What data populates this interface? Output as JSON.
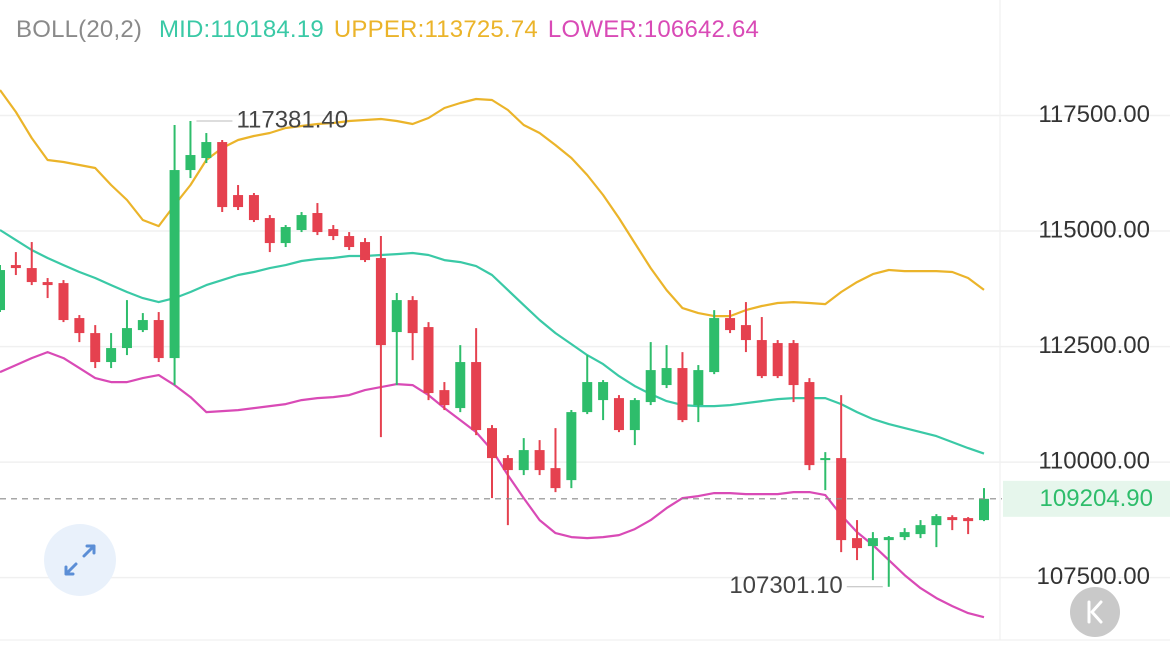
{
  "chart_data": {
    "type": "candlestick",
    "indicator": "BOLL(20,2)",
    "up_color": "#2ebd6b",
    "down_color": "#e5414f",
    "open": [
      113290,
      114264,
      114199,
      113896,
      113874,
      113117,
      112792,
      112165,
      112468,
      112857,
      113074,
      112251,
      116320,
      116580,
      116926,
      115779,
      115779,
      115281,
      114740,
      115022,
      115390,
      115043,
      114892,
      114762,
      114416,
      112814,
      113506,
      112922,
      111558,
      111169,
      112165,
      110736,
      110087,
      109827,
      110260,
      109870,
      109610,
      111082,
      111342,
      111385,
      110693,
      111299,
      111667,
      112035,
      111234,
      111948,
      113117,
      112965,
      112641,
      112576,
      112576,
      111732,
      110043,
      110087,
      108355,
      108182,
      108312,
      108377,
      108442,
      108636,
      108810,
      108788,
      108745
    ],
    "high": [
      114264,
      114545,
      114762,
      113983,
      113939,
      113182,
      112965,
      112792,
      113506,
      113225,
      113247,
      117294,
      117381.4,
      117121,
      116970,
      115996,
      115823,
      115346,
      115130,
      115411,
      115606,
      115130,
      114978,
      114848,
      114892,
      113658,
      113593,
      113030,
      111732,
      112532,
      112900,
      110801,
      110152,
      110519,
      110476,
      110736,
      111126,
      112316,
      111775,
      111450,
      111385,
      112597,
      112532,
      112381,
      112100,
      113290,
      113290,
      113463,
      113139,
      112641,
      112641,
      111818,
      110216,
      111450,
      108745,
      108485,
      108400,
      108571,
      108745,
      108874,
      108850,
      108810,
      109437
    ],
    "low": [
      113247,
      114048,
      113831,
      113550,
      113030,
      112597,
      112035,
      112035,
      112316,
      112814,
      112165,
      111667,
      116147,
      116472,
      115411,
      115455,
      115195,
      114545,
      114654,
      114978,
      114913,
      114805,
      114589,
      114329,
      110541,
      111667,
      112208,
      111342,
      111126,
      111082,
      110584,
      109221,
      108636,
      109719,
      109719,
      109351,
      109437,
      111039,
      110909,
      110649,
      110368,
      111234,
      111602,
      110866,
      110866,
      111905,
      112792,
      112381,
      111818,
      111818,
      111299,
      109827,
      109394,
      108052,
      107879,
      107446,
      107301.1,
      108312,
      108355,
      108160,
      108528,
      108442,
      108723
    ],
    "close": [
      114156,
      114199,
      113896,
      113831,
      113074,
      112792,
      112165,
      112468,
      112900,
      113074,
      112251,
      116320,
      116645,
      116926,
      115519,
      115519,
      115238,
      114740,
      115087,
      115346,
      114978,
      114892,
      114654,
      114372,
      112532,
      113506,
      112792,
      111494,
      111234,
      112165,
      110693,
      110087,
      109827,
      110260,
      109827,
      109437,
      111082,
      111732,
      111732,
      110693,
      111342,
      111991,
      112035,
      110909,
      111991,
      113117,
      112857,
      112641,
      111861,
      111861,
      111667,
      109935,
      110087,
      108312,
      108139,
      108355,
      108377,
      108485,
      108636,
      108831,
      108745,
      108723,
      109204.9
    ],
    "lines": [
      {
        "name": "MID:",
        "color": "#3ac9a6",
        "values": [
          115022,
          114805,
          114589,
          114416,
          114264,
          114113,
          113983,
          113831,
          113680,
          113550,
          113463,
          113550,
          113680,
          113831,
          113939,
          114048,
          114113,
          114199,
          114264,
          114351,
          114394,
          114416,
          114459,
          114459,
          114481,
          114502,
          114524,
          114481,
          114372,
          114329,
          114242,
          114048,
          113723,
          113398,
          113074,
          112792,
          112554,
          112316,
          112121,
          111861,
          111645,
          111472,
          111320,
          111234,
          111212,
          111212,
          111234,
          111277,
          111320,
          111364,
          111385,
          111385,
          111385,
          111255,
          111082,
          110931,
          110823,
          110736,
          110649,
          110563,
          110433,
          110303,
          110184.19
        ]
      },
      {
        "name": "UPPER:",
        "color": "#ebb42a",
        "values": [
          118052,
          117576,
          117013,
          116537,
          116494,
          116429,
          116364,
          115996,
          115671,
          115238,
          115108,
          115563,
          115996,
          116537,
          116797,
          116970,
          117056,
          117121,
          117229,
          117273,
          117316,
          117338,
          117381,
          117403,
          117424,
          117381,
          117316,
          117446,
          117662,
          117771,
          117857,
          117835,
          117619,
          117294,
          117121,
          116861,
          116580,
          116212,
          115779,
          115281,
          114740,
          114199,
          113723,
          113333,
          113225,
          113160,
          113160,
          113290,
          113377,
          113442,
          113463,
          113442,
          113420,
          113680,
          113896,
          114069,
          114156,
          114134,
          114134,
          114134,
          114113,
          113983,
          113725.74
        ]
      },
      {
        "name": "LOWER:",
        "color": "#d94ab6",
        "values": [
          111948,
          112100,
          112251,
          112381,
          112251,
          112035,
          111818,
          111732,
          111732,
          111818,
          111883,
          111667,
          111407,
          111082,
          111104,
          111126,
          111169,
          111212,
          111255,
          111342,
          111385,
          111407,
          111450,
          111558,
          111623,
          111688,
          111667,
          111450,
          111169,
          110909,
          110649,
          110260,
          109719,
          109221,
          108745,
          108463,
          108377,
          108355,
          108377,
          108420,
          108550,
          108745,
          109004,
          109221,
          109264,
          109329,
          109329,
          109307,
          109307,
          109307,
          109351,
          109351,
          109286,
          108853,
          108485,
          108203,
          107879,
          107554,
          107273,
          107056,
          106883,
          106732,
          106642.64
        ]
      }
    ],
    "ylim": [
      106150,
      120000
    ],
    "yticks": [
      {
        "value": 117500,
        "label": "117500.00"
      },
      {
        "value": 115000,
        "label": "115000.00"
      },
      {
        "value": 112500,
        "label": "112500.00"
      },
      {
        "value": 110000,
        "label": "110000.00"
      },
      {
        "value": 107500,
        "label": "107500.00"
      }
    ],
    "grid": true,
    "high_label": "117381.40",
    "low_label": "107301.10",
    "last_price_label": "109204.90"
  }
}
